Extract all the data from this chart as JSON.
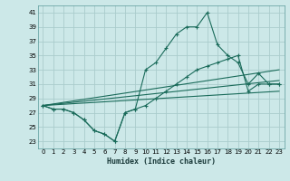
{
  "xlabel": "Humidex (Indice chaleur)",
  "bg_color": "#cce8e8",
  "grid_color": "#aacccc",
  "line_color": "#1a6b5a",
  "xlim": [
    -0.5,
    23.5
  ],
  "ylim": [
    22,
    42
  ],
  "xticks": [
    0,
    1,
    2,
    3,
    4,
    5,
    6,
    7,
    8,
    9,
    10,
    11,
    12,
    13,
    14,
    15,
    16,
    17,
    18,
    19,
    20,
    21,
    22,
    23
  ],
  "yticks": [
    23,
    25,
    27,
    29,
    31,
    33,
    35,
    37,
    39,
    41
  ],
  "series_main_x": [
    0,
    1,
    2,
    3,
    4,
    5,
    6,
    7,
    8,
    9,
    10,
    11,
    12,
    13,
    14,
    15,
    16,
    17,
    18,
    19,
    20,
    21,
    22,
    23
  ],
  "series_main_y": [
    28,
    27.5,
    27.5,
    27,
    26,
    24.5,
    24,
    23,
    27,
    27.5,
    33,
    34,
    36,
    38,
    39,
    39,
    41,
    36.5,
    35,
    34,
    31,
    32.5,
    31,
    31
  ],
  "series_lower_x": [
    0,
    1,
    2,
    3,
    4,
    5,
    6,
    7,
    8,
    9,
    10,
    11,
    12,
    13,
    14,
    15,
    16,
    17,
    18,
    19,
    20,
    21,
    22,
    23
  ],
  "series_lower_y": [
    28,
    27.5,
    27.5,
    27,
    26,
    24.5,
    24,
    23,
    27,
    27.5,
    28,
    29,
    30,
    31,
    32,
    33,
    33.5,
    34,
    34.5,
    35,
    30,
    31,
    31,
    31
  ],
  "line1_x": [
    0,
    23
  ],
  "line1_y": [
    28,
    30
  ],
  "line2_x": [
    0,
    23
  ],
  "line2_y": [
    28,
    31.5
  ],
  "line3_x": [
    0,
    23
  ],
  "line3_y": [
    28,
    33
  ]
}
